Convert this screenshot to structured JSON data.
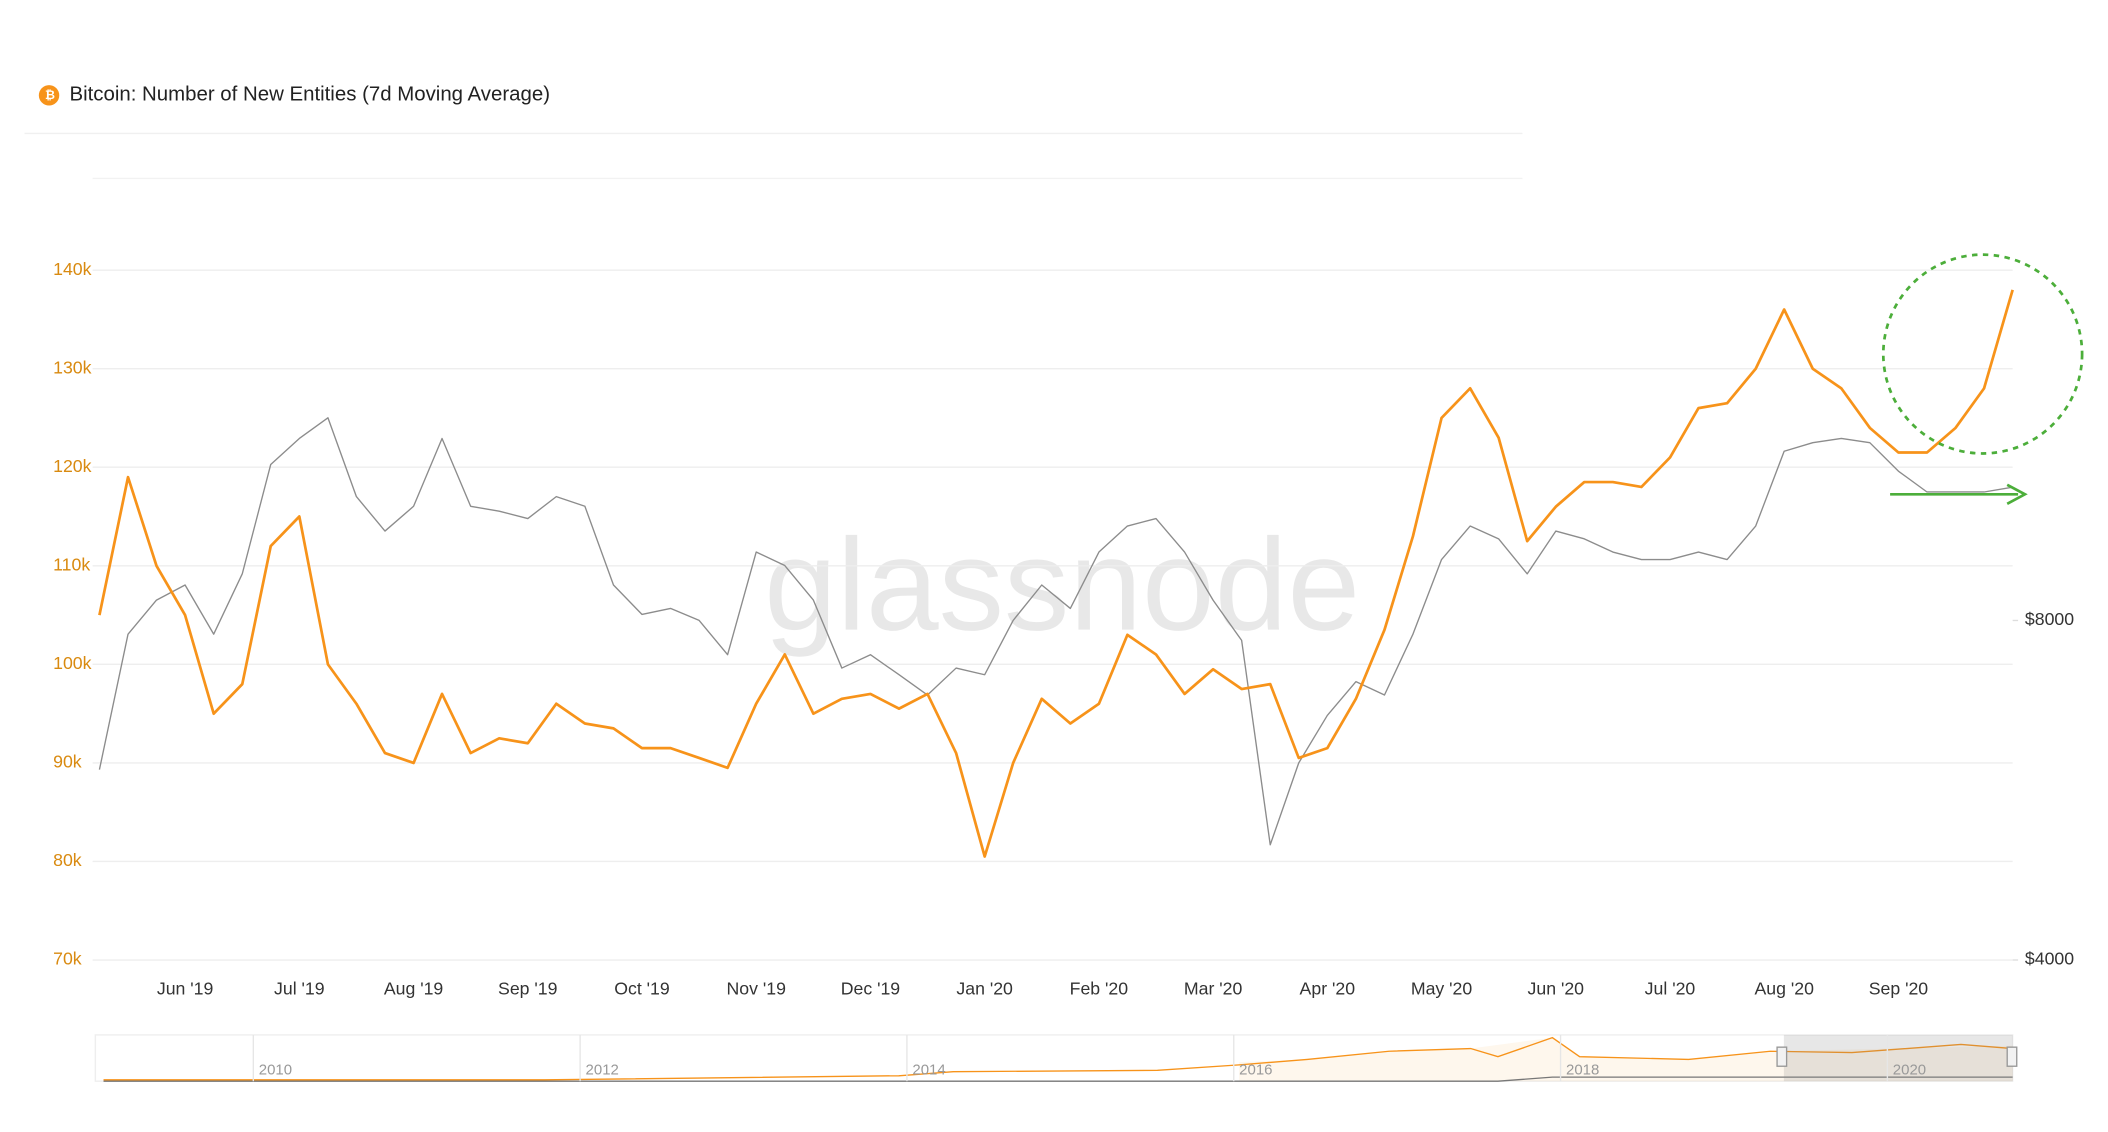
{
  "chart_data": {
    "type": "line",
    "title": "Bitcoin: Number of New Entities (7d Moving Average)",
    "watermark": "glassnode",
    "categories": [
      null,
      null,
      null,
      "Jun '19",
      null,
      null,
      null,
      "Jul '19",
      null,
      null,
      null,
      "Aug '19",
      null,
      null,
      null,
      "Sep '19",
      null,
      null,
      null,
      "Oct '19",
      null,
      null,
      null,
      "Nov '19",
      null,
      null,
      null,
      "Dec '19",
      null,
      null,
      null,
      "Jan '20",
      null,
      null,
      null,
      "Feb '20",
      null,
      null,
      null,
      "Mar '20",
      null,
      null,
      null,
      "Apr '20",
      null,
      null,
      null,
      "May '20",
      null,
      null,
      null,
      "Jun '20",
      null,
      null,
      null,
      "Jul '20",
      null,
      null,
      null,
      "Aug '20",
      null,
      null,
      null,
      "Sep '20",
      null,
      null,
      null,
      null
    ],
    "series": [
      {
        "color": "#f7931a",
        "axis": "y",
        "values": [
          105000,
          119000,
          110000,
          105000,
          95000,
          98000,
          112000,
          115000,
          100000,
          96000,
          91000,
          90000,
          97000,
          91000,
          92500,
          92000,
          96000,
          94000,
          93500,
          91500,
          91500,
          90500,
          89500,
          96000,
          101000,
          95000,
          96500,
          97000,
          95500,
          97000,
          91000,
          80500,
          90000,
          96500,
          94000,
          96000,
          103000,
          101000,
          97000,
          99500,
          97500,
          98000,
          90500,
          91500,
          96500,
          103500,
          113000,
          125000,
          128000,
          123000,
          112500,
          116000,
          118500,
          118500,
          118000,
          121000,
          126000,
          126500,
          130000,
          136000,
          130000,
          128000,
          124000,
          121500,
          121500,
          124000,
          128000,
          138000
        ]
      },
      {
        "color": "#8c8c8c",
        "axis": "y2",
        "values": [
          5900,
          7780,
          8340,
          8600,
          7780,
          8800,
          11000,
          11600,
          12100,
          10300,
          9600,
          10100,
          11600,
          10100,
          10000,
          9850,
          10300,
          10100,
          8600,
          8100,
          8200,
          8000,
          7460,
          9200,
          8950,
          8340,
          7260,
          7460,
          7160,
          6870,
          7260,
          7160,
          8000,
          8600,
          8200,
          9200,
          9700,
          9850,
          9200,
          8340,
          7680,
          5060,
          5980,
          6590,
          7060,
          6870,
          7780,
          9060,
          9700,
          9450,
          8800,
          9600,
          9450,
          9200,
          9060,
          9060,
          9200,
          9060,
          9700,
          11300,
          11500,
          11600,
          11500,
          10850,
          10400,
          10400,
          10400,
          10500
        ]
      }
    ],
    "ylim": [
      70000,
      150000
    ],
    "yticks": [
      {
        "value": 70000,
        "label": "70k"
      },
      {
        "value": 80000,
        "label": "80k"
      },
      {
        "value": 90000,
        "label": "90k"
      },
      {
        "value": 100000,
        "label": "100k"
      },
      {
        "value": 110000,
        "label": "110k"
      },
      {
        "value": 120000,
        "label": "120k"
      },
      {
        "value": 130000,
        "label": "130k"
      },
      {
        "value": 140000,
        "label": "140k"
      }
    ],
    "y2lim": [
      4000,
      20000
    ],
    "y2log": true,
    "y2ticks": [
      {
        "value": 4000,
        "label": "$4000"
      },
      {
        "value": 8000,
        "label": "$8000"
      }
    ],
    "grid": true,
    "navigator": {
      "labels": [
        "2010",
        "2012",
        "2014",
        "2016",
        "2018",
        "2020"
      ]
    }
  }
}
